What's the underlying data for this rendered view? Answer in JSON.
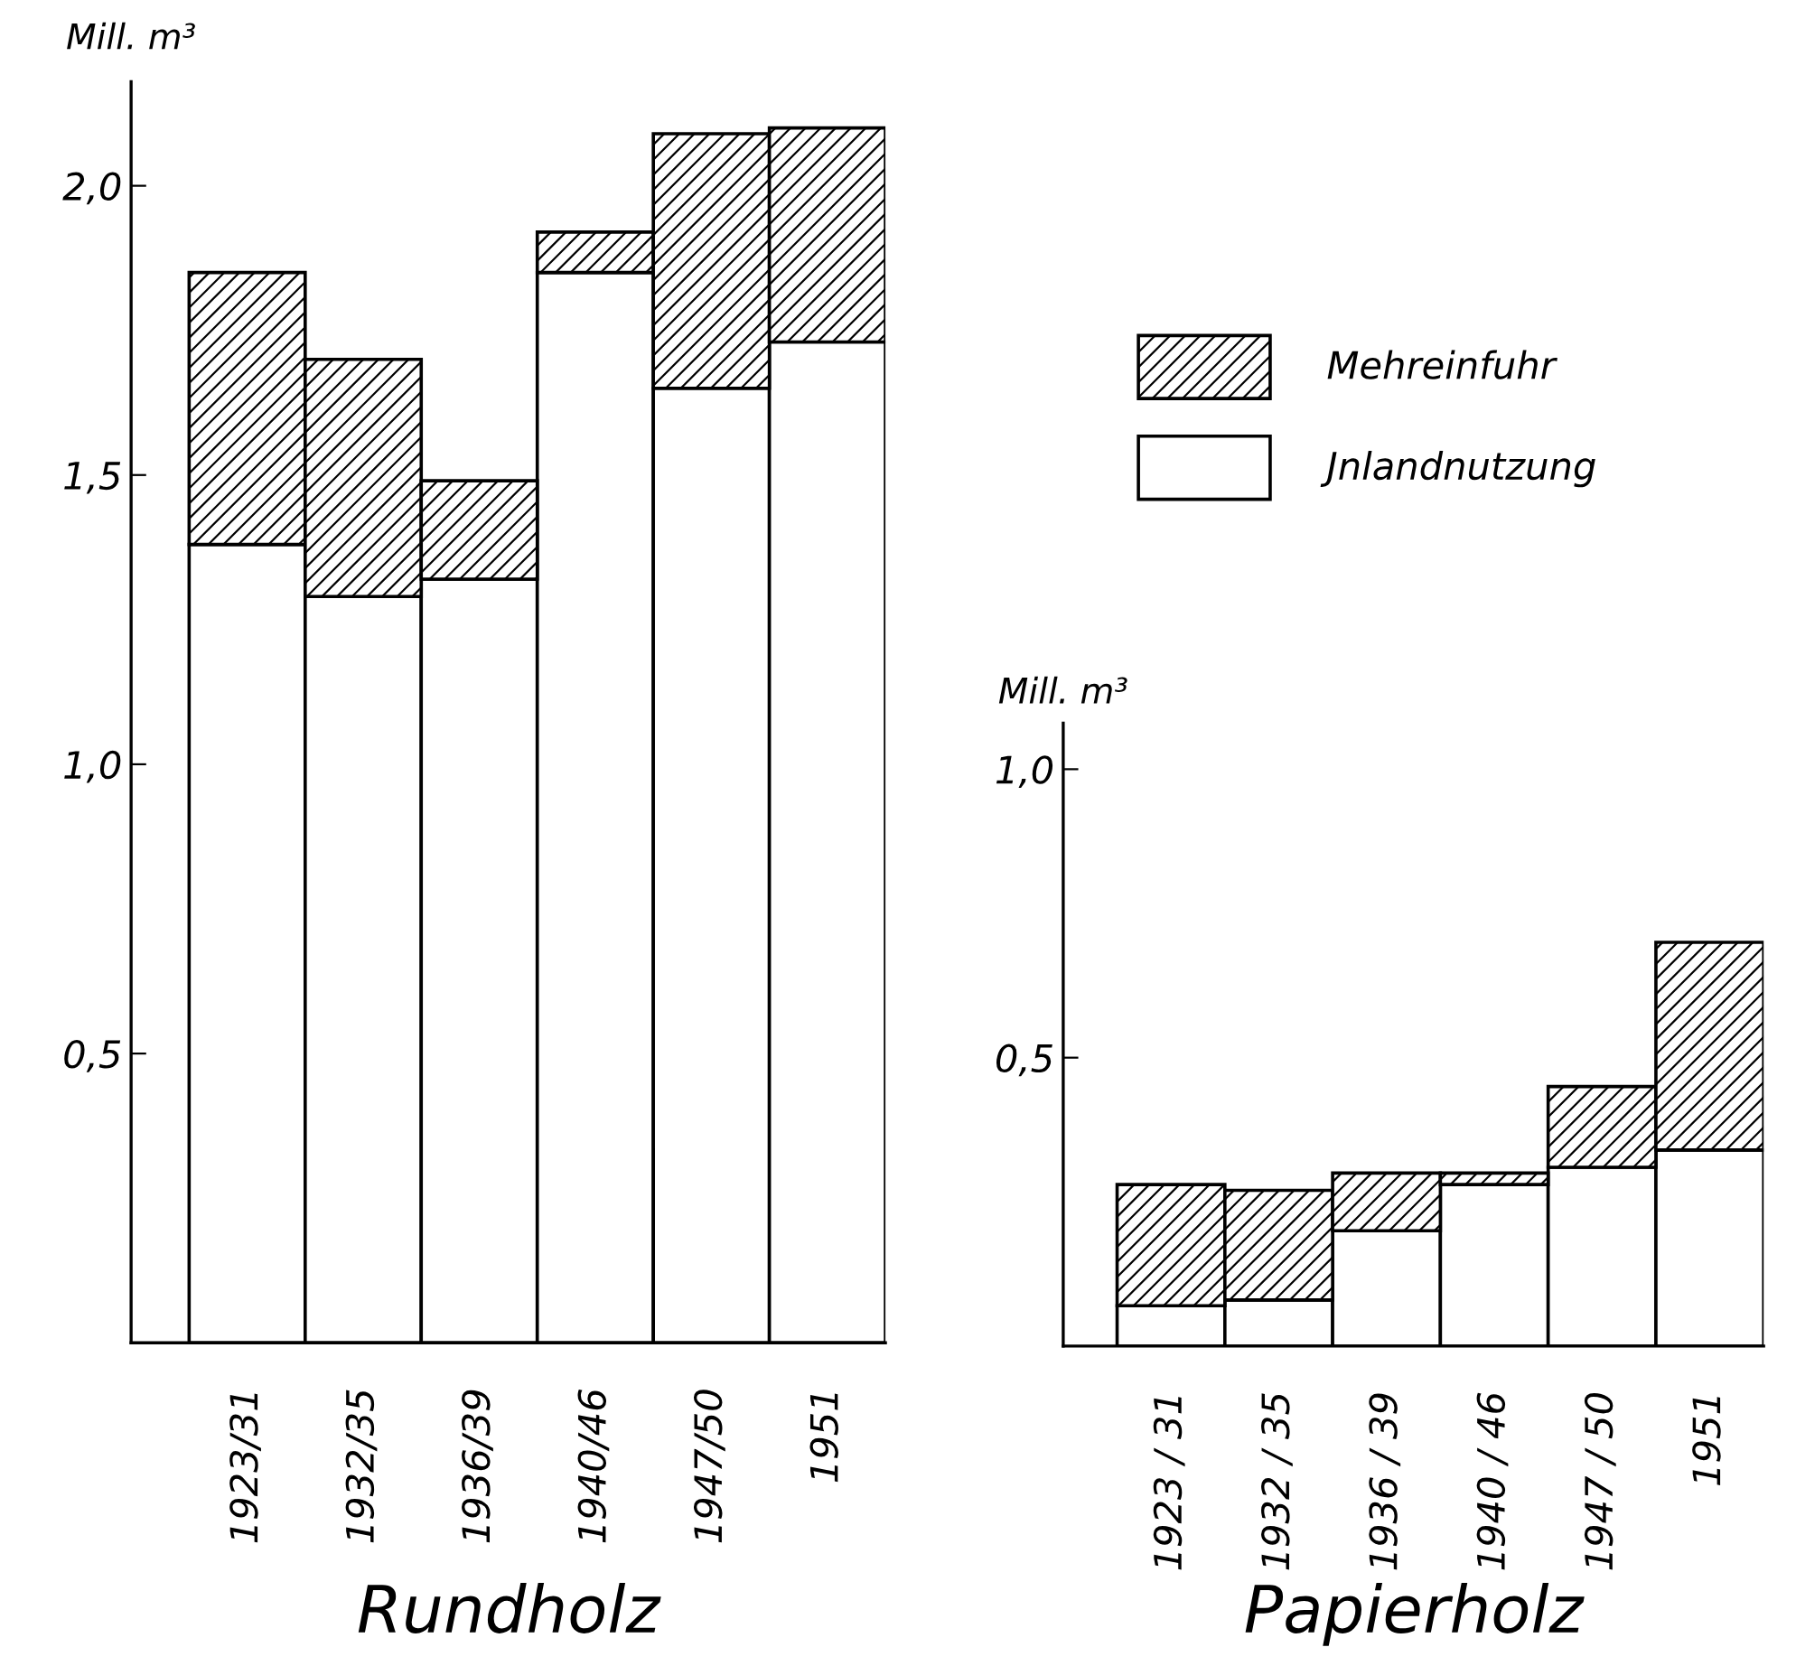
{
  "chart_data": [
    {
      "type": "bar",
      "stacked": true,
      "title": "Rundholz",
      "ylabel": "Mill. m³",
      "categories": [
        "1923/31",
        "1932/35",
        "1936/39",
        "1940/46",
        "1947/50",
        "1951"
      ],
      "series": [
        {
          "name": "Jnlandnutzung",
          "color": "#ffffff",
          "values": [
            1.38,
            1.29,
            1.32,
            1.85,
            1.65,
            1.73
          ]
        },
        {
          "name": "Mehreinfuhr",
          "color": "#000000",
          "values": [
            0.47,
            0.41,
            0.17,
            0.07,
            0.44,
            0.37
          ]
        }
      ],
      "ylim": [
        0,
        2.18
      ],
      "yticks": [
        {
          "value": 0.5,
          "label": "0,5"
        },
        {
          "value": 1.0,
          "label": "1,0"
        },
        {
          "value": 1.5,
          "label": "1,5"
        },
        {
          "value": 2.0,
          "label": "2,0"
        }
      ],
      "grid": false,
      "legend": "right"
    },
    {
      "type": "bar",
      "stacked": true,
      "title": "Papierholz",
      "ylabel": "Mill. m³",
      "categories": [
        "1923 / 31",
        "1932 / 35",
        "1936 / 39",
        "1940 / 46",
        "1947 / 50",
        "1951"
      ],
      "series": [
        {
          "color": "#ffffff",
          "values": [
            0.07,
            0.08,
            0.2,
            0.28,
            0.31,
            0.34
          ]
        },
        {
          "color": "#000000",
          "values": [
            0.21,
            0.19,
            0.1,
            0.02,
            0.14,
            0.36
          ]
        }
      ],
      "ylim": [
        0,
        1.08
      ],
      "yticks": [
        {
          "value": 0.5,
          "label": "0,5"
        },
        {
          "value": 1.0,
          "label": "1,0"
        }
      ],
      "grid": false,
      "legend": false
    }
  ]
}
